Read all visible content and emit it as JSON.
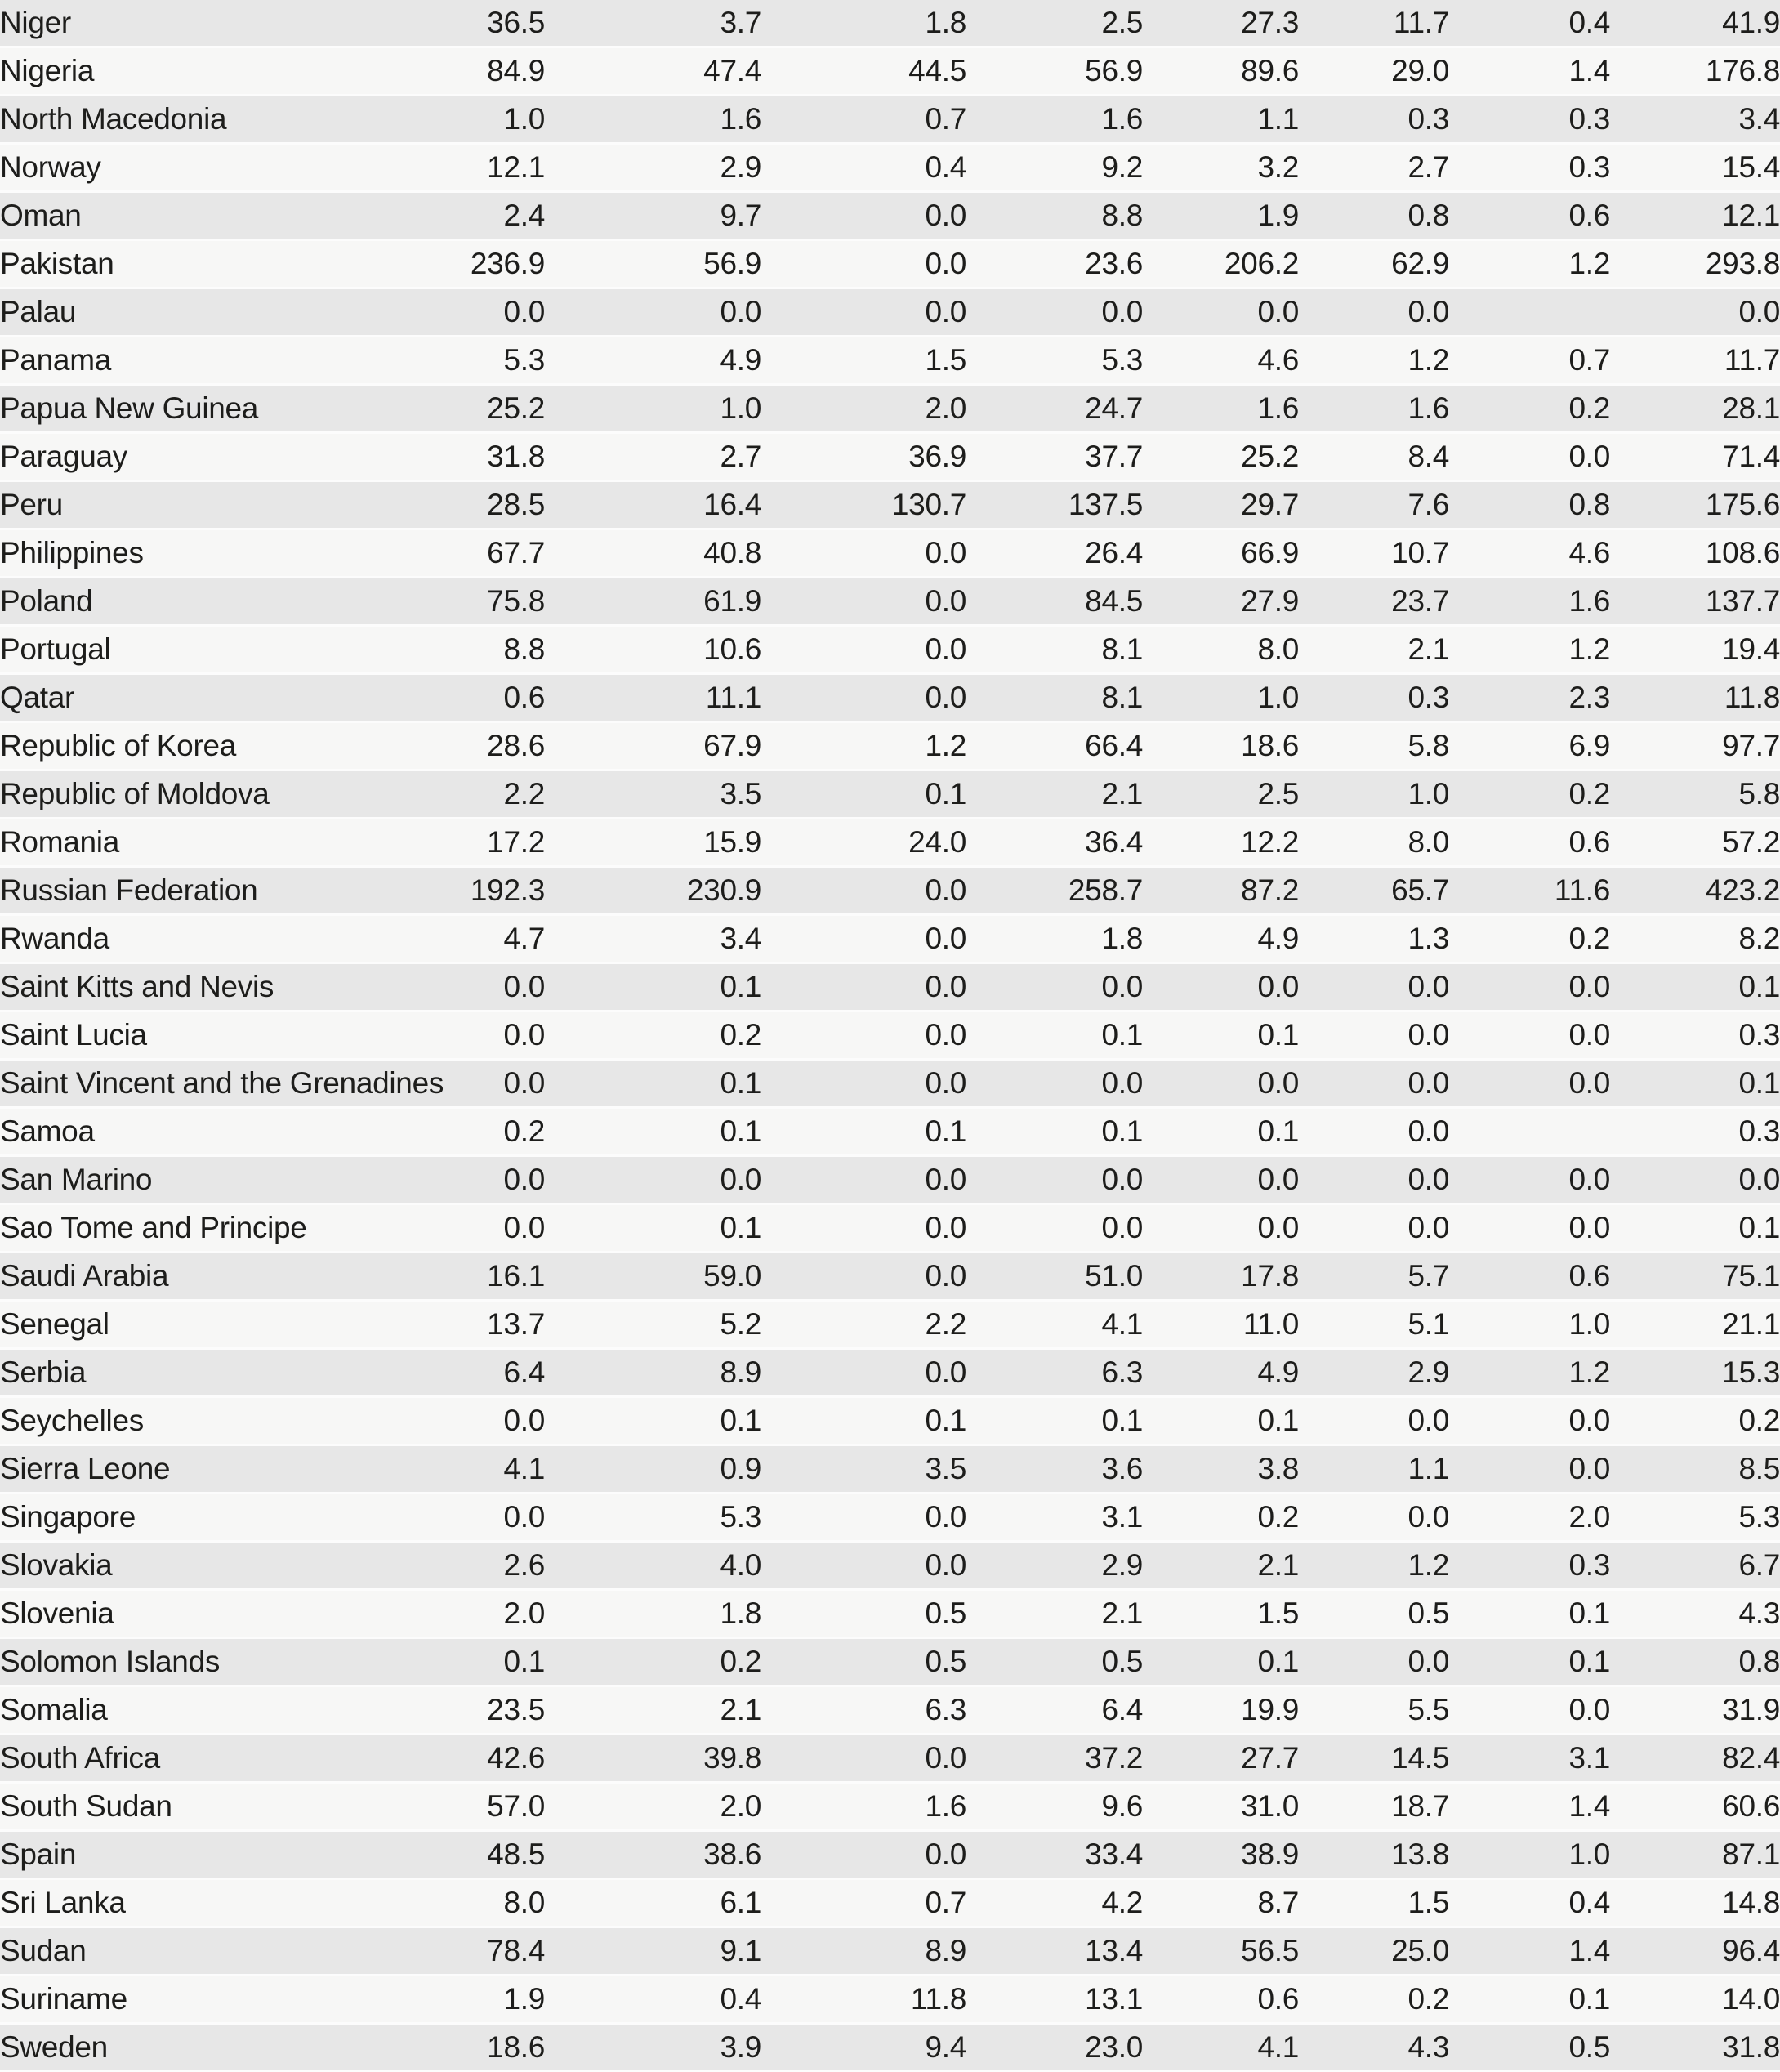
{
  "colors": {
    "row_shaded": "#e7e7e7",
    "row_plain": "#f7f7f6",
    "row_separator": "#fcfcfc",
    "text": "#1d1d1b"
  },
  "table": {
    "rows": [
      {
        "country": "Niger",
        "values": [
          "36.5",
          "3.7",
          "1.8",
          "2.5",
          "27.3",
          "11.7",
          "0.4",
          "41.9"
        ]
      },
      {
        "country": "Nigeria",
        "values": [
          "84.9",
          "47.4",
          "44.5",
          "56.9",
          "89.6",
          "29.0",
          "1.4",
          "176.8"
        ]
      },
      {
        "country": "North Macedonia",
        "values": [
          "1.0",
          "1.6",
          "0.7",
          "1.6",
          "1.1",
          "0.3",
          "0.3",
          "3.4"
        ]
      },
      {
        "country": "Norway",
        "values": [
          "12.1",
          "2.9",
          "0.4",
          "9.2",
          "3.2",
          "2.7",
          "0.3",
          "15.4"
        ]
      },
      {
        "country": "Oman",
        "values": [
          "2.4",
          "9.7",
          "0.0",
          "8.8",
          "1.9",
          "0.8",
          "0.6",
          "12.1"
        ]
      },
      {
        "country": "Pakistan",
        "values": [
          "236.9",
          "56.9",
          "0.0",
          "23.6",
          "206.2",
          "62.9",
          "1.2",
          "293.8"
        ]
      },
      {
        "country": "Palau",
        "values": [
          "0.0",
          "0.0",
          "0.0",
          "0.0",
          "0.0",
          "0.0",
          "",
          "0.0"
        ]
      },
      {
        "country": "Panama",
        "values": [
          "5.3",
          "4.9",
          "1.5",
          "5.3",
          "4.6",
          "1.2",
          "0.7",
          "11.7"
        ]
      },
      {
        "country": "Papua New Guinea",
        "values": [
          "25.2",
          "1.0",
          "2.0",
          "24.7",
          "1.6",
          "1.6",
          "0.2",
          "28.1"
        ]
      },
      {
        "country": "Paraguay",
        "values": [
          "31.8",
          "2.7",
          "36.9",
          "37.7",
          "25.2",
          "8.4",
          "0.0",
          "71.4"
        ]
      },
      {
        "country": "Peru",
        "values": [
          "28.5",
          "16.4",
          "130.7",
          "137.5",
          "29.7",
          "7.6",
          "0.8",
          "175.6"
        ]
      },
      {
        "country": "Philippines",
        "values": [
          "67.7",
          "40.8",
          "0.0",
          "26.4",
          "66.9",
          "10.7",
          "4.6",
          "108.6"
        ]
      },
      {
        "country": "Poland",
        "values": [
          "75.8",
          "61.9",
          "0.0",
          "84.5",
          "27.9",
          "23.7",
          "1.6",
          "137.7"
        ]
      },
      {
        "country": "Portugal",
        "values": [
          "8.8",
          "10.6",
          "0.0",
          "8.1",
          "8.0",
          "2.1",
          "1.2",
          "19.4"
        ]
      },
      {
        "country": "Qatar",
        "values": [
          "0.6",
          "11.1",
          "0.0",
          "8.1",
          "1.0",
          "0.3",
          "2.3",
          "11.8"
        ]
      },
      {
        "country": "Republic of Korea",
        "values": [
          "28.6",
          "67.9",
          "1.2",
          "66.4",
          "18.6",
          "5.8",
          "6.9",
          "97.7"
        ]
      },
      {
        "country": "Republic of Moldova",
        "values": [
          "2.2",
          "3.5",
          "0.1",
          "2.1",
          "2.5",
          "1.0",
          "0.2",
          "5.8"
        ]
      },
      {
        "country": "Romania",
        "values": [
          "17.2",
          "15.9",
          "24.0",
          "36.4",
          "12.2",
          "8.0",
          "0.6",
          "57.2"
        ]
      },
      {
        "country": "Russian Federation",
        "values": [
          "192.3",
          "230.9",
          "0.0",
          "258.7",
          "87.2",
          "65.7",
          "11.6",
          "423.2"
        ]
      },
      {
        "country": "Rwanda",
        "values": [
          "4.7",
          "3.4",
          "0.0",
          "1.8",
          "4.9",
          "1.3",
          "0.2",
          "8.2"
        ]
      },
      {
        "country": "Saint Kitts and Nevis",
        "values": [
          "0.0",
          "0.1",
          "0.0",
          "0.0",
          "0.0",
          "0.0",
          "0.0",
          "0.1"
        ]
      },
      {
        "country": "Saint Lucia",
        "values": [
          "0.0",
          "0.2",
          "0.0",
          "0.1",
          "0.1",
          "0.0",
          "0.0",
          "0.3"
        ]
      },
      {
        "country": "Saint Vincent and the Grenadines",
        "values": [
          "0.0",
          "0.1",
          "0.0",
          "0.0",
          "0.0",
          "0.0",
          "0.0",
          "0.1"
        ]
      },
      {
        "country": "Samoa",
        "values": [
          "0.2",
          "0.1",
          "0.1",
          "0.1",
          "0.1",
          "0.0",
          "",
          "0.3"
        ]
      },
      {
        "country": "San Marino",
        "values": [
          "0.0",
          "0.0",
          "0.0",
          "0.0",
          "0.0",
          "0.0",
          "0.0",
          "0.0"
        ]
      },
      {
        "country": "Sao Tome and Principe",
        "values": [
          "0.0",
          "0.1",
          "0.0",
          "0.0",
          "0.0",
          "0.0",
          "0.0",
          "0.1"
        ]
      },
      {
        "country": "Saudi Arabia",
        "values": [
          "16.1",
          "59.0",
          "0.0",
          "51.0",
          "17.8",
          "5.7",
          "0.6",
          "75.1"
        ]
      },
      {
        "country": "Senegal",
        "values": [
          "13.7",
          "5.2",
          "2.2",
          "4.1",
          "11.0",
          "5.1",
          "1.0",
          "21.1"
        ]
      },
      {
        "country": "Serbia",
        "values": [
          "6.4",
          "8.9",
          "0.0",
          "6.3",
          "4.9",
          "2.9",
          "1.2",
          "15.3"
        ]
      },
      {
        "country": "Seychelles",
        "values": [
          "0.0",
          "0.1",
          "0.1",
          "0.1",
          "0.1",
          "0.0",
          "0.0",
          "0.2"
        ]
      },
      {
        "country": "Sierra Leone",
        "values": [
          "4.1",
          "0.9",
          "3.5",
          "3.6",
          "3.8",
          "1.1",
          "0.0",
          "8.5"
        ]
      },
      {
        "country": "Singapore",
        "values": [
          "0.0",
          "5.3",
          "0.0",
          "3.1",
          "0.2",
          "0.0",
          "2.0",
          "5.3"
        ]
      },
      {
        "country": "Slovakia",
        "values": [
          "2.6",
          "4.0",
          "0.0",
          "2.9",
          "2.1",
          "1.2",
          "0.3",
          "6.7"
        ]
      },
      {
        "country": "Slovenia",
        "values": [
          "2.0",
          "1.8",
          "0.5",
          "2.1",
          "1.5",
          "0.5",
          "0.1",
          "4.3"
        ]
      },
      {
        "country": "Solomon Islands",
        "values": [
          "0.1",
          "0.2",
          "0.5",
          "0.5",
          "0.1",
          "0.0",
          "0.1",
          "0.8"
        ]
      },
      {
        "country": "Somalia",
        "values": [
          "23.5",
          "2.1",
          "6.3",
          "6.4",
          "19.9",
          "5.5",
          "0.0",
          "31.9"
        ]
      },
      {
        "country": "South Africa",
        "values": [
          "42.6",
          "39.8",
          "0.0",
          "37.2",
          "27.7",
          "14.5",
          "3.1",
          "82.4"
        ]
      },
      {
        "country": "South Sudan",
        "values": [
          "57.0",
          "2.0",
          "1.6",
          "9.6",
          "31.0",
          "18.7",
          "1.4",
          "60.6"
        ]
      },
      {
        "country": "Spain",
        "values": [
          "48.5",
          "38.6",
          "0.0",
          "33.4",
          "38.9",
          "13.8",
          "1.0",
          "87.1"
        ]
      },
      {
        "country": "Sri Lanka",
        "values": [
          "8.0",
          "6.1",
          "0.7",
          "4.2",
          "8.7",
          "1.5",
          "0.4",
          "14.8"
        ]
      },
      {
        "country": "Sudan",
        "values": [
          "78.4",
          "9.1",
          "8.9",
          "13.4",
          "56.5",
          "25.0",
          "1.4",
          "96.4"
        ]
      },
      {
        "country": "Suriname",
        "values": [
          "1.9",
          "0.4",
          "11.8",
          "13.1",
          "0.6",
          "0.2",
          "0.1",
          "14.0"
        ]
      },
      {
        "country": "Sweden",
        "values": [
          "18.6",
          "3.9",
          "9.4",
          "23.0",
          "4.1",
          "4.3",
          "0.5",
          "31.8"
        ]
      }
    ]
  }
}
